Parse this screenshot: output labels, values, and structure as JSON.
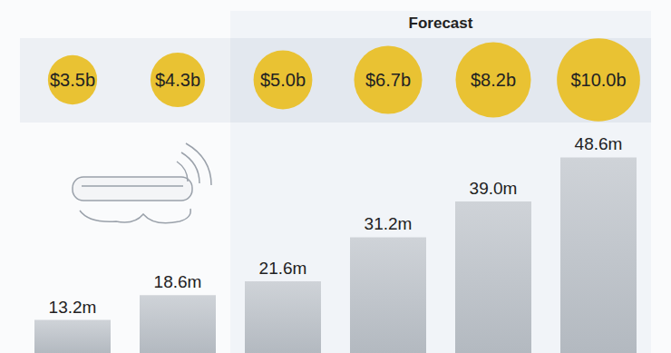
{
  "chart_data": {
    "type": "bar",
    "annotation": "Forecast",
    "categories": [
      null,
      null,
      null,
      null,
      null,
      null
    ],
    "values": [
      13.2,
      18.6,
      21.6,
      31.2,
      39.0,
      48.6
    ],
    "value_labels": [
      "13.2m",
      "18.6m",
      "21.6m",
      "31.2m",
      "39.0m",
      "48.6m"
    ],
    "data_labels": true,
    "forecast": [
      false,
      false,
      true,
      true,
      true,
      true
    ],
    "revenue": {
      "values": [
        3.5,
        4.3,
        5.0,
        6.7,
        8.2,
        10.0
      ],
      "labels": [
        "$3.5b",
        "$4.3b",
        "$5.0b",
        "$6.7b",
        "$8.2b",
        "$10.0b"
      ],
      "color": "#e9c233"
    },
    "color": "#b3b9c0",
    "ylim": [
      6,
      55
    ],
    "yticks": [],
    "tick_labels": false,
    "grid": false
  }
}
